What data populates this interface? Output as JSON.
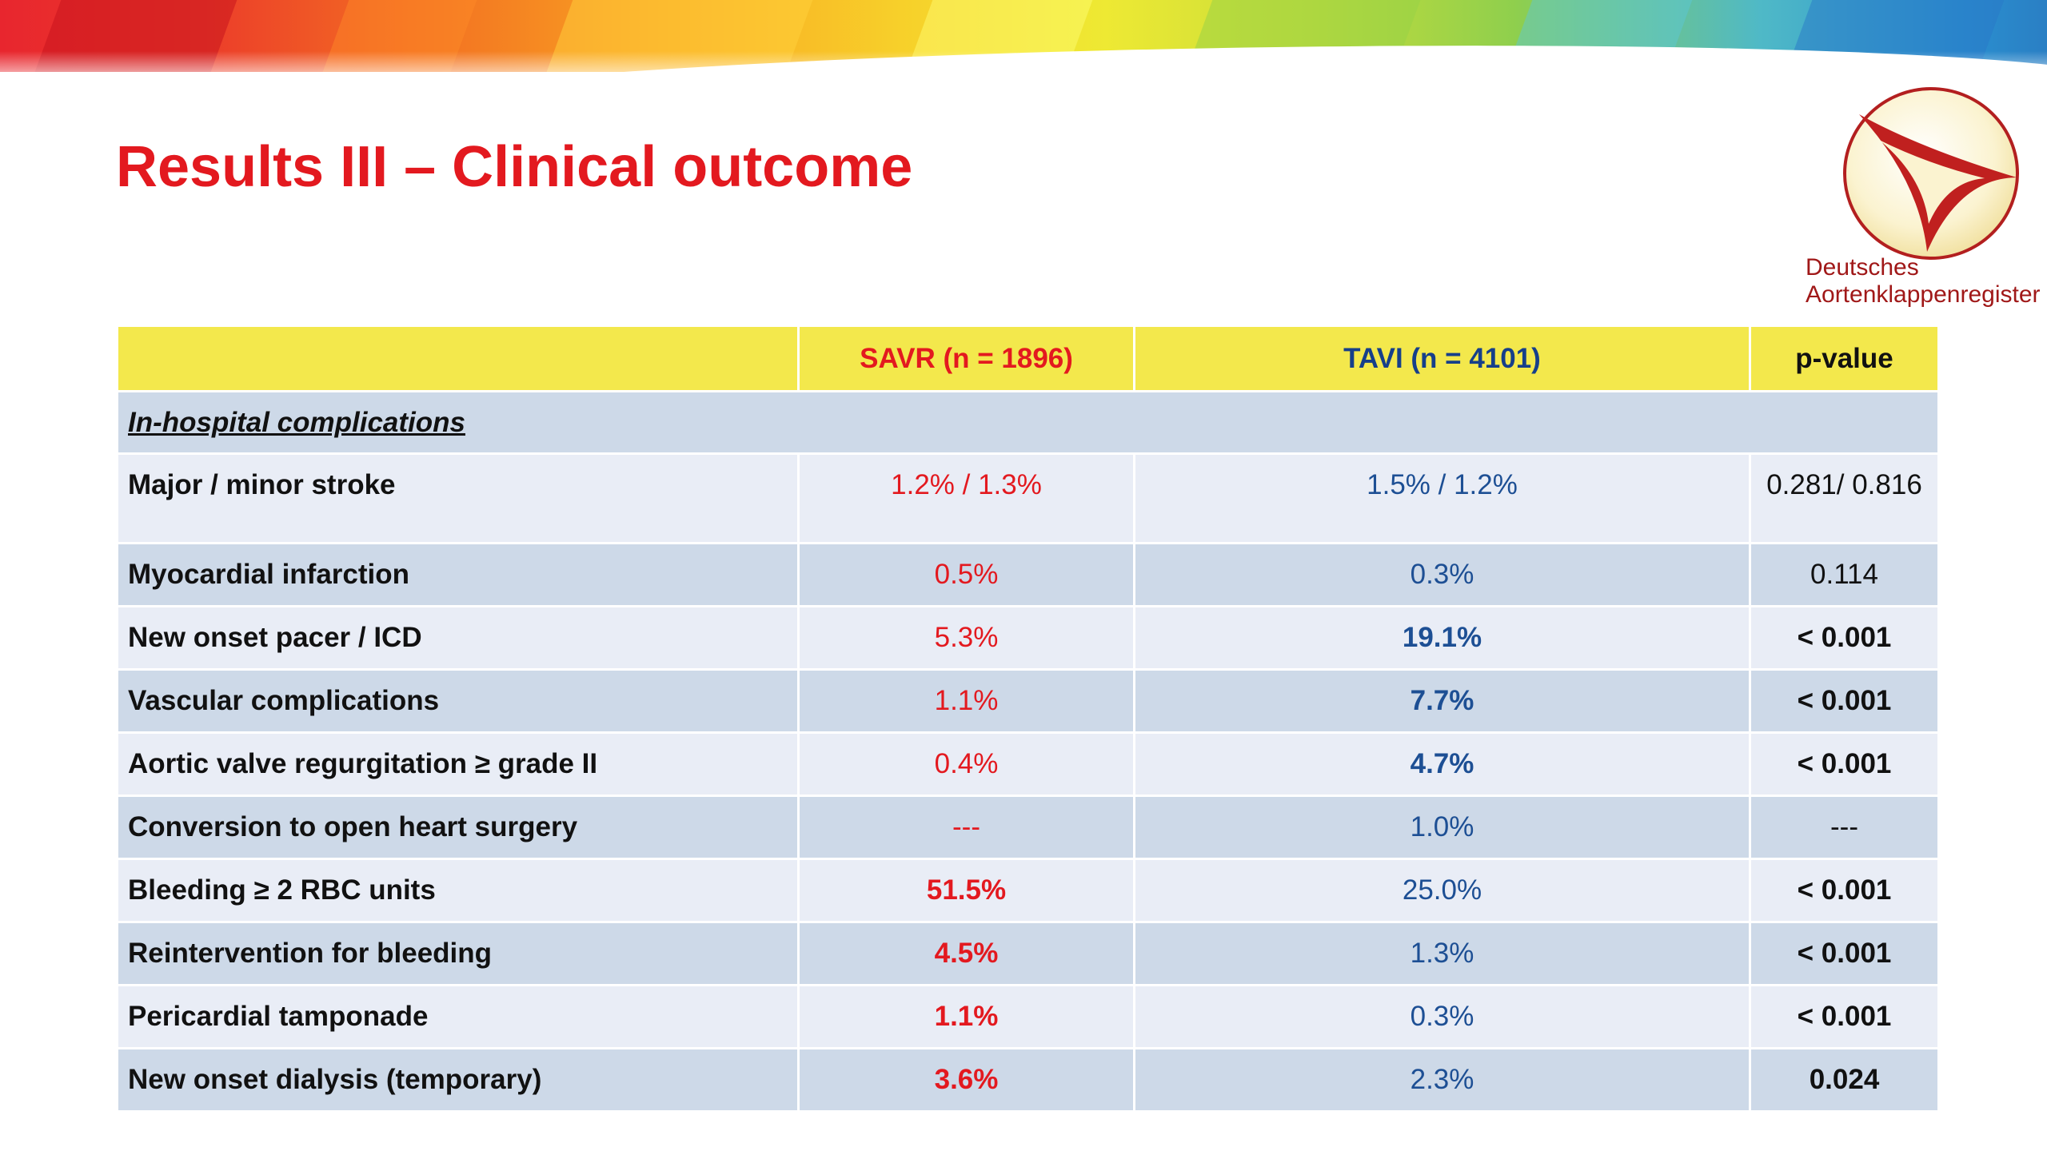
{
  "slide": {
    "title": "Results III – Clinical outcome",
    "logo": {
      "line1": "Deutsches",
      "line2": "Aortenklappenregister",
      "icon": "aortic-valve-logo-icon"
    }
  },
  "table": {
    "headers": [
      "",
      "SAVR (n = 1896)",
      "TAVI (n = 4101)",
      "p-value"
    ],
    "section_label": "In-hospital complications",
    "rows": [
      {
        "label": "Major / minor stroke",
        "savr": "1.2% / 1.3%",
        "tavi": "1.5% / 1.2%",
        "p": "0.281/ 0.816"
      },
      {
        "label": "Myocardial infarction",
        "savr": "0.5%",
        "tavi": "0.3%",
        "p": "0.114"
      },
      {
        "label": "New onset pacer / ICD",
        "savr": "5.3%",
        "tavi": "19.1%",
        "p": "< 0.001"
      },
      {
        "label": "Vascular complications",
        "savr": "1.1%",
        "tavi": "7.7%",
        "p": "< 0.001"
      },
      {
        "label": "Aortic valve regurgitation ≥ grade II",
        "savr": "0.4%",
        "tavi": "4.7%",
        "p": "< 0.001"
      },
      {
        "label": "Conversion to open heart surgery",
        "savr": "---",
        "tavi": "1.0%",
        "p": "---"
      },
      {
        "label": "Bleeding ≥ 2 RBC units",
        "savr": "51.5%",
        "tavi": "25.0%",
        "p": "< 0.001"
      },
      {
        "label": "Reintervention for bleeding",
        "savr": "4.5%",
        "tavi": "1.3%",
        "p": "< 0.001"
      },
      {
        "label": "Pericardial tamponade",
        "savr": "1.1%",
        "tavi": "0.3%",
        "p": "< 0.001"
      },
      {
        "label": "New onset dialysis (temporary)",
        "savr": "3.6%",
        "tavi": "2.3%",
        "p": "0.024"
      }
    ]
  },
  "colors": {
    "title_red": "#e3191f",
    "header_yellow": "#f3e84c",
    "savr_red": "#e3191f",
    "tavi_blue": "#1d4f94",
    "row_light": "#e9edf6",
    "row_dark": "#cdd9e8",
    "logo_red": "#a01818"
  }
}
